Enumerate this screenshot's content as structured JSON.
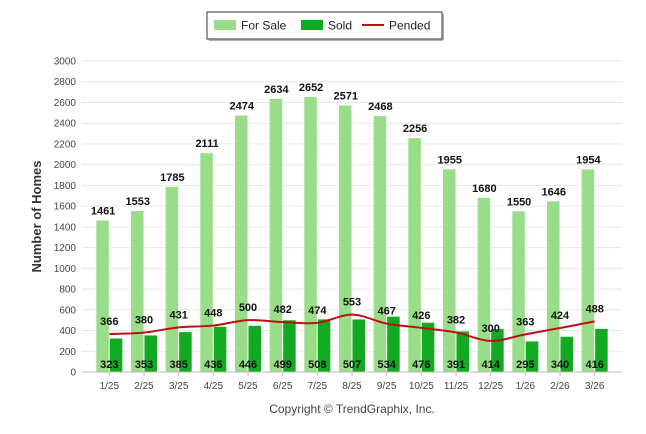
{
  "chart_data": {
    "type": "bar",
    "ylabel": "Number of Homes",
    "ylim": [
      0,
      3000
    ],
    "yticks": [
      "0",
      "200",
      "400",
      "600",
      "800",
      "1000",
      "1200",
      "1400",
      "1600",
      "1800",
      "2000",
      "2200",
      "2400",
      "2600",
      "2800",
      "3000"
    ],
    "categories": [
      "1/25",
      "2/25",
      "3/25",
      "4/25",
      "5/25",
      "6/25",
      "7/25",
      "8/25",
      "9/25",
      "10/25",
      "11/25",
      "12/25",
      "1/26",
      "2/26",
      "3/26"
    ],
    "series": [
      {
        "name": "For Sale",
        "type": "bar",
        "color": "#99dd88",
        "values": [
          1461,
          1553,
          1785,
          2111,
          2474,
          2634,
          2652,
          2571,
          2468,
          2256,
          1955,
          1680,
          1550,
          1646,
          1954
        ]
      },
      {
        "name": "Sold",
        "type": "bar",
        "color": "#11aa22",
        "values": [
          323,
          353,
          385,
          436,
          446,
          499,
          508,
          507,
          534,
          476,
          391,
          414,
          295,
          340,
          416
        ]
      },
      {
        "name": "Pended",
        "type": "line",
        "color": "#bb1111",
        "values": [
          366,
          380,
          431,
          448,
          500,
          482,
          474,
          553,
          467,
          426,
          382,
          300,
          363,
          424,
          488
        ]
      }
    ],
    "grid": true,
    "legend_position": "top-center",
    "footer": "Copyright © TrendGraphix, Inc."
  }
}
